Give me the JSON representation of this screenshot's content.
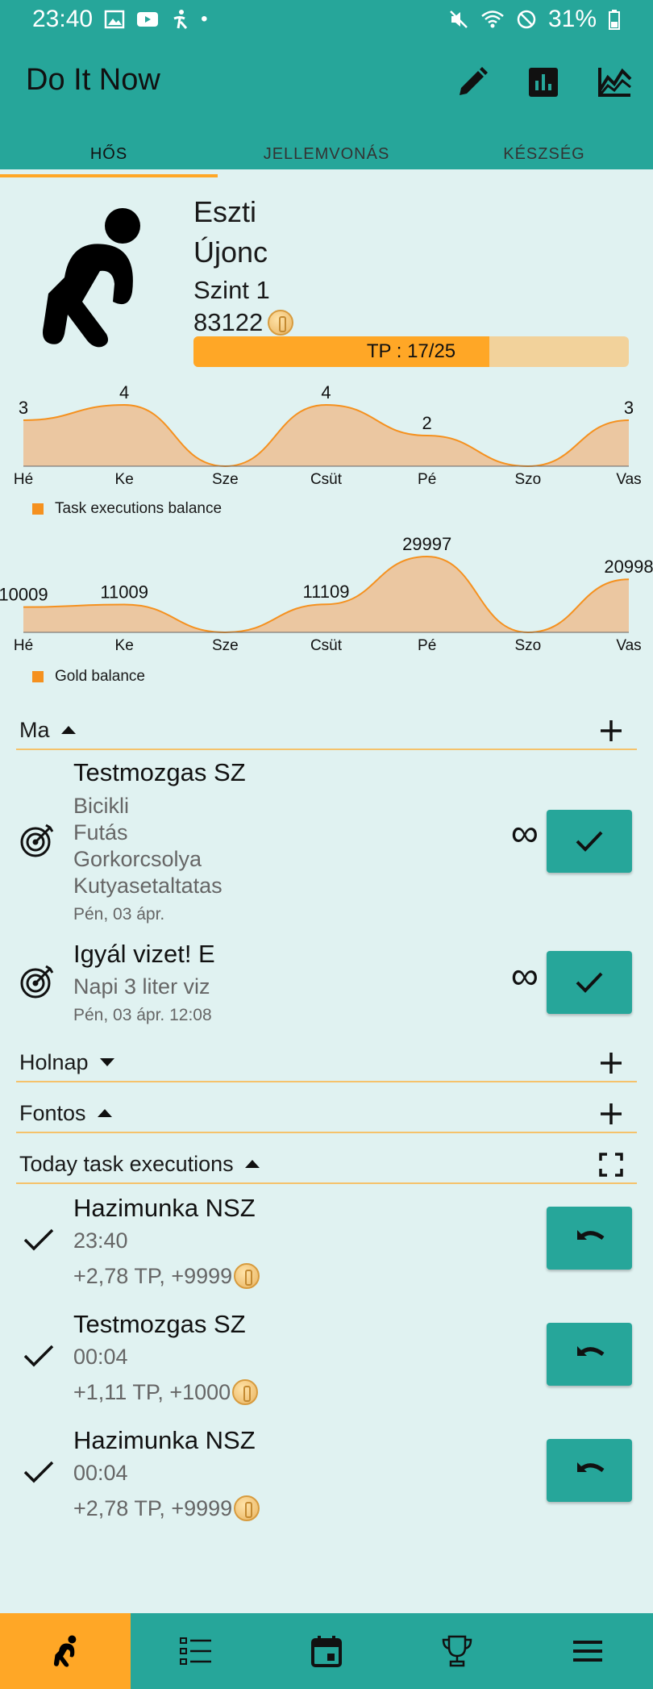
{
  "status_bar": {
    "time": "23:40",
    "battery": "31%",
    "left_icons": [
      "image-icon",
      "youtube-icon",
      "accessibility-icon",
      "dot-icon"
    ],
    "right_icons": [
      "mute-icon",
      "wifi-icon",
      "dnd-icon",
      "battery-icon"
    ]
  },
  "app_bar": {
    "title": "Do It Now",
    "actions": [
      "edit-icon",
      "bar-chart-icon",
      "line-chart-icon"
    ]
  },
  "tabs": [
    {
      "label": "HŐS",
      "active": true
    },
    {
      "label": "JELLEMVONÁS",
      "active": false
    },
    {
      "label": "KÉSZSÉG",
      "active": false
    }
  ],
  "hero": {
    "name": "Eszti",
    "rank": "Újonc",
    "level": "Szint 1",
    "gold": "83122",
    "tp_label": "TP : 17/25",
    "tp_current": 17,
    "tp_max": 25
  },
  "chart_data": [
    {
      "type": "area",
      "categories": [
        "Hé",
        "Ke",
        "Sze",
        "Csüt",
        "Pé",
        "Szo",
        "Vas"
      ],
      "series": [
        {
          "name": "Task executions balance",
          "values": [
            3,
            4,
            0,
            4,
            2,
            0,
            3
          ]
        }
      ],
      "data_labels": [
        "3",
        "4",
        "",
        "4",
        "2",
        "",
        "3"
      ],
      "legend": "bottom-left",
      "color": "#f5911f",
      "ylim": [
        0,
        4
      ]
    },
    {
      "type": "area",
      "categories": [
        "Hé",
        "Ke",
        "Sze",
        "Csüt",
        "Pé",
        "Szo",
        "Vas"
      ],
      "series": [
        {
          "name": "Gold balance",
          "values": [
            10009,
            11009,
            0,
            11109,
            29997,
            0,
            20998
          ]
        }
      ],
      "data_labels": [
        "10009",
        "11009",
        "",
        "11109",
        "29997",
        "",
        "20998"
      ],
      "legend": "bottom-left",
      "color": "#f5911f",
      "ylim": [
        0,
        29997
      ]
    }
  ],
  "sections": {
    "today": {
      "title": "Ma",
      "expanded": true,
      "action_icon": "add-icon"
    },
    "tomorrow": {
      "title": "Holnap",
      "expanded": false,
      "action_icon": "add-icon"
    },
    "important": {
      "title": "Fontos",
      "expanded": true,
      "action_icon": "add-icon"
    },
    "executions": {
      "title": "Today task executions",
      "expanded": true,
      "action_icon": "fullscreen-icon"
    }
  },
  "today_tasks": [
    {
      "title": "Testmozgas SZ",
      "lines": [
        "Bicikli",
        "Futás",
        "Gorkorcsolya",
        "Kutyasetaltatas"
      ],
      "date": "Pén, 03 ápr.",
      "repeat": "∞",
      "icon": "target-icon"
    },
    {
      "title": "Igyál vizet! E",
      "lines": [
        "Napi 3 liter viz"
      ],
      "date": "Pén, 03 ápr. 12:08",
      "repeat": "∞",
      "icon": "target-icon"
    }
  ],
  "executions": [
    {
      "title": "Hazimunka NSZ",
      "time": "23:40",
      "reward": "+2,78 TP, +9999"
    },
    {
      "title": "Testmozgas SZ",
      "time": "00:04",
      "reward": "+1,11 TP, +1000"
    },
    {
      "title": "Hazimunka NSZ",
      "time": "00:04",
      "reward": "+2,78 TP, +9999"
    }
  ],
  "bottom_nav": [
    {
      "icon": "hero-icon",
      "active": true
    },
    {
      "icon": "list-icon",
      "active": false
    },
    {
      "icon": "calendar-icon",
      "active": false
    },
    {
      "icon": "trophy-icon",
      "active": false
    },
    {
      "icon": "menu-icon",
      "active": false
    }
  ]
}
